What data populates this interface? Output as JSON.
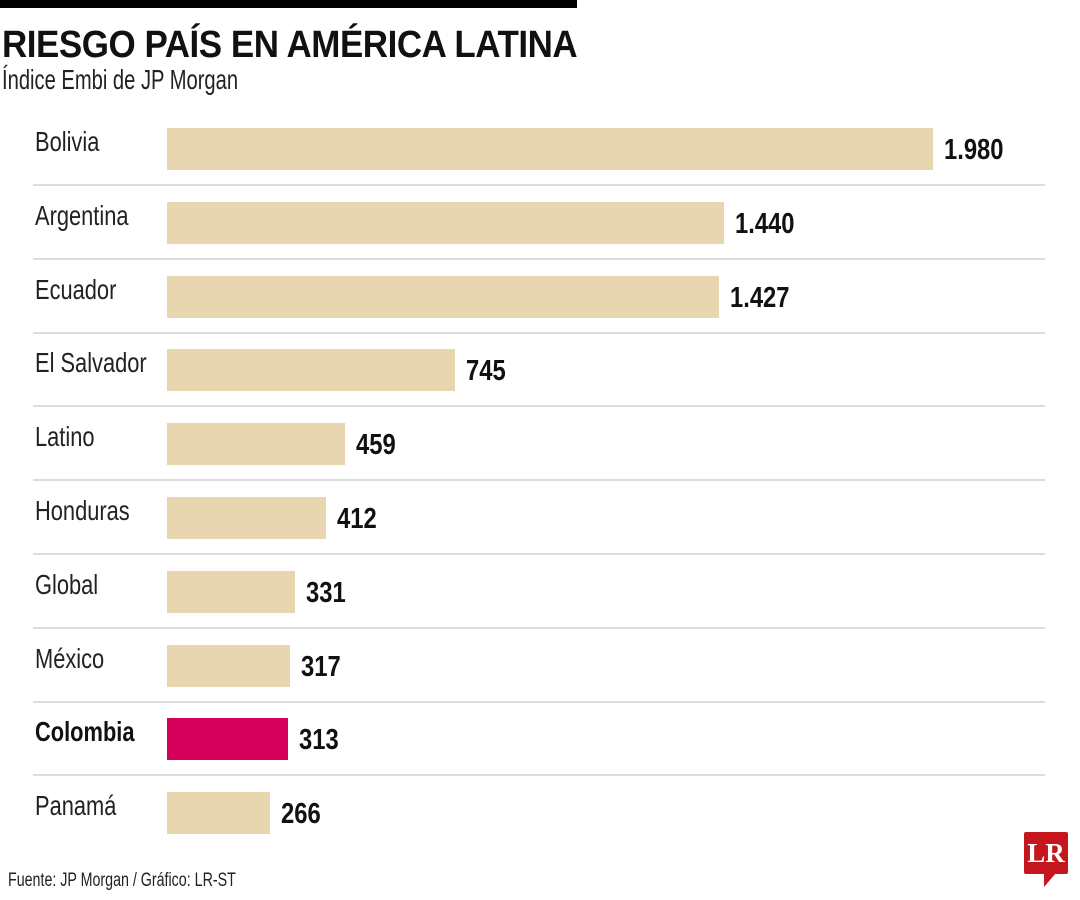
{
  "chart_data": {
    "type": "bar",
    "orientation": "horizontal",
    "title": "RIESGO PAÍS EN AMÉRICA LATINA",
    "subtitle": "Índice Embi de JP Morgan",
    "categories": [
      "Bolivia",
      "Argentina",
      "Ecuador",
      "El Salvador",
      "Latino",
      "Honduras",
      "Global",
      "México",
      "Colombia",
      "Panamá"
    ],
    "values": [
      1980,
      1440,
      1427,
      745,
      459,
      412,
      331,
      317,
      313,
      266
    ],
    "value_labels": [
      "1.980",
      "1.440",
      "1.427",
      "745",
      "459",
      "412",
      "331",
      "317",
      "313",
      "266"
    ],
    "highlight": "Colombia",
    "xlim": [
      0,
      1980
    ],
    "grid": false,
    "colors": {
      "bar": "#e8d6b0",
      "highlight": "#d4005a",
      "logo": "#c4161c"
    },
    "source": "Fuente: JP Morgan / Gráfico: LR-ST"
  },
  "logo_text": "LR"
}
